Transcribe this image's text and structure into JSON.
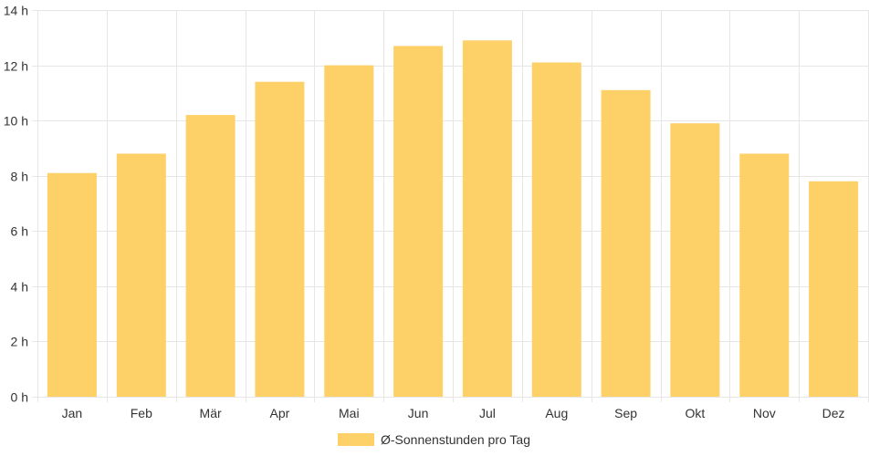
{
  "chart_data": {
    "type": "bar",
    "categories": [
      "Jan",
      "Feb",
      "Mär",
      "Apr",
      "Mai",
      "Jun",
      "Jul",
      "Aug",
      "Sep",
      "Okt",
      "Nov",
      "Dez"
    ],
    "series": [
      {
        "name": "Ø-Sonnenstunden pro Tag",
        "values": [
          8.1,
          8.8,
          10.2,
          11.4,
          12.0,
          12.7,
          12.9,
          12.1,
          11.1,
          9.9,
          8.8,
          7.8
        ],
        "color": "#fdd068"
      }
    ],
    "ylim": [
      0,
      14
    ],
    "yticks": [
      "0 h",
      "2 h",
      "4 h",
      "6 h",
      "8 h",
      "10 h",
      "12 h",
      "14 h"
    ],
    "ytick_values": [
      0,
      2,
      4,
      6,
      8,
      10,
      12,
      14
    ],
    "grid": true,
    "legend_position": "bottom"
  }
}
